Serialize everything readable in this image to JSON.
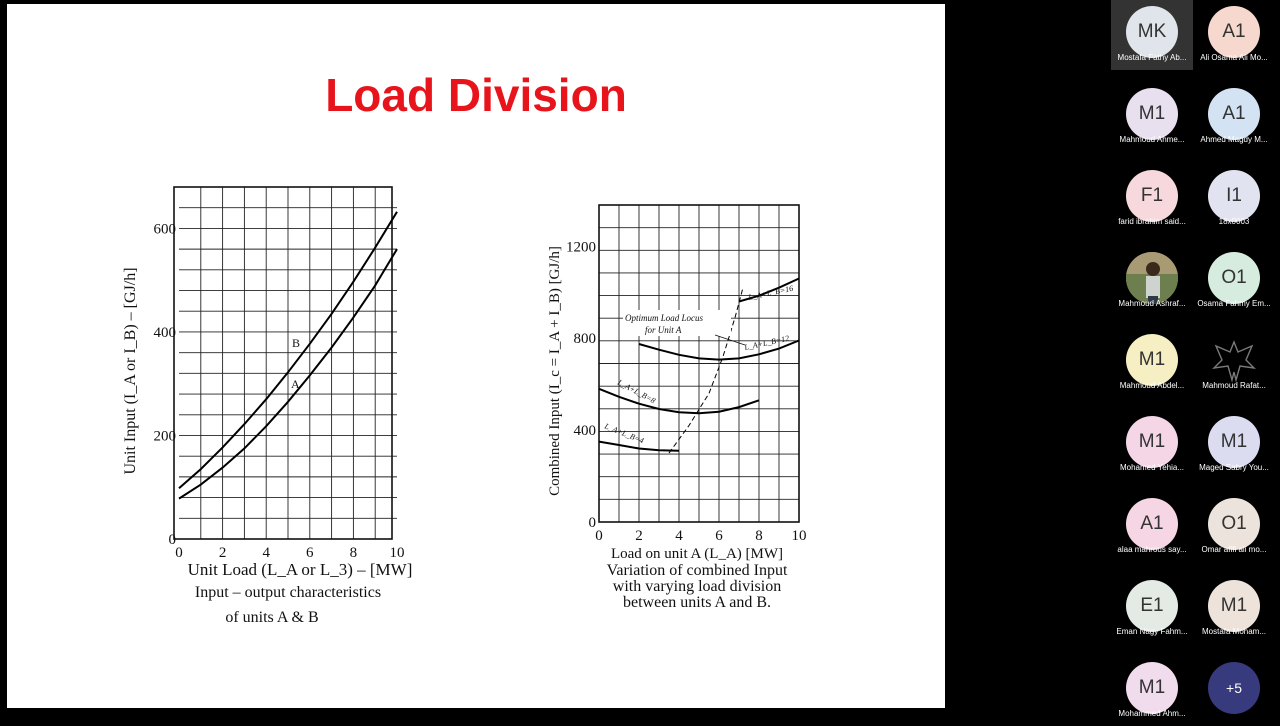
{
  "slide": {
    "title": "Load Division",
    "left_chart": {
      "ylabel": "Unit Input (I_A or I_B) – [GJ/h]",
      "xlabel": "Unit Load (L_A or L_3) – [MW]",
      "caption": [
        "Input – output characteristics",
        "of units A & B"
      ],
      "xticks": [
        "0",
        "2",
        "4",
        "6",
        "8",
        "10"
      ],
      "yticks": [
        "0",
        "200",
        "400",
        "600"
      ],
      "curve_labels": {
        "a": "A",
        "b": "B"
      }
    },
    "right_chart": {
      "ylabel": "Combined Input (I_c = I_A + I_B)   [GJ/h]",
      "xlabel": "Load on unit A (L_A)   [MW]",
      "caption": [
        "Variation of combined Input",
        "with varying  load division",
        "between units A and B."
      ],
      "xticks": [
        "0",
        "2",
        "4",
        "6",
        "8",
        "10"
      ],
      "yticks": [
        "0",
        "400",
        "800",
        "1200"
      ],
      "annotation": [
        "Optimum Load Locus",
        "for Unit A"
      ],
      "curve_labels": {
        "c16": "L_A+L_B=16",
        "c12": "L_A+L_B=12",
        "c8": "L_A+L_B=8",
        "c4": "L_A+L_B=4"
      }
    }
  },
  "chart_data": [
    {
      "type": "line",
      "xlabel": "Unit Load (L_A or L_3) – [MW]",
      "ylabel": "Unit Input (I_A or I_B) – [GJ/h]",
      "xlim": [
        0,
        10
      ],
      "ylim": [
        0,
        680
      ],
      "grid": true,
      "series": [
        {
          "name": "A",
          "x": [
            0,
            1,
            2,
            3,
            4,
            5,
            6,
            7,
            8,
            9,
            10
          ],
          "y": [
            78,
            105,
            138,
            175,
            218,
            265,
            316,
            370,
            428,
            490,
            560
          ]
        },
        {
          "name": "B",
          "x": [
            0,
            1,
            2,
            3,
            4,
            5,
            6,
            7,
            8,
            9,
            10
          ],
          "y": [
            98,
            135,
            177,
            222,
            270,
            322,
            377,
            435,
            497,
            563,
            632
          ]
        }
      ]
    },
    {
      "type": "line",
      "xlabel": "Load on unit A (L_A)   [MW]",
      "ylabel": "Combined Input (I_c = I_A + I_B)   [GJ/h]",
      "xlim": [
        0,
        10
      ],
      "ylim": [
        0,
        1380
      ],
      "grid": true,
      "series": [
        {
          "name": "L_A+L_B=4",
          "x": [
            0,
            1,
            2,
            3,
            4
          ],
          "y": [
            350,
            335,
            320,
            312,
            310
          ]
        },
        {
          "name": "L_A+L_B=8",
          "x": [
            0,
            1,
            2,
            3,
            4,
            5,
            6,
            7,
            8
          ],
          "y": [
            580,
            545,
            515,
            492,
            478,
            473,
            480,
            500,
            530
          ]
        },
        {
          "name": "L_A+L_B=12",
          "x": [
            2,
            3,
            4,
            5,
            6,
            7,
            8,
            9,
            10
          ],
          "y": [
            775,
            750,
            728,
            712,
            707,
            712,
            730,
            755,
            790
          ]
        },
        {
          "name": "L_A+L_B=16",
          "x": [
            7,
            8,
            9,
            10
          ],
          "y": [
            960,
            985,
            1020,
            1060
          ]
        },
        {
          "name": "Optimum Load Locus for Unit A",
          "x": [
            3.5,
            4.5,
            5.5,
            6.2,
            6.8,
            7.2
          ],
          "y": [
            300,
            420,
            560,
            720,
            890,
            1020
          ]
        }
      ]
    }
  ],
  "participants": [
    {
      "initials": "MK",
      "name": "Mostafa Fathy Ab...",
      "color": "#dfe5ea",
      "active": true
    },
    {
      "initials": "A1",
      "name": "Ali Osama Ali Mo...",
      "color": "#f6d8ce"
    },
    {
      "initials": "M1",
      "name": "Mahmoud Ahme...",
      "color": "#e9e0ef"
    },
    {
      "initials": "A1",
      "name": "Ahmed Magdy M...",
      "color": "#d3e3f4"
    },
    {
      "initials": "F1",
      "name": "farid ibrahim said...",
      "color": "#f7d9dd"
    },
    {
      "initials": "I1",
      "name": "18x0003",
      "color": "#e1e3f0"
    },
    {
      "initials": "",
      "name": "Mahmoud Ashraf...",
      "color": "#8a7a55",
      "photo": true
    },
    {
      "initials": "O1",
      "name": "Osama Fahmy Em...",
      "color": "#d6ecdf"
    },
    {
      "initials": "M1",
      "name": "Mahmoud Abdel...",
      "color": "#f6efc4"
    },
    {
      "initials": "",
      "name": "Mahmoud Rafat...",
      "color": "#000000",
      "emblem": true
    },
    {
      "initials": "M1",
      "name": "Mohamed Yehia...",
      "color": "#f4d6e7"
    },
    {
      "initials": "M1",
      "name": "Maged Sabry You...",
      "color": "#dcdcf1"
    },
    {
      "initials": "A1",
      "name": "alaa mahrous say...",
      "color": "#f6d6e4"
    },
    {
      "initials": "O1",
      "name": "Omar afifi ali mo...",
      "color": "#ece4dc"
    },
    {
      "initials": "E1",
      "name": "Eman Nagy Fahm...",
      "color": "#e3ebe4"
    },
    {
      "initials": "M1",
      "name": "Mostafa Moham...",
      "color": "#ede3da"
    },
    {
      "initials": "M1",
      "name": "Mohammed Ahm...",
      "color": "#f0dcec"
    }
  ],
  "more_count": "+5"
}
